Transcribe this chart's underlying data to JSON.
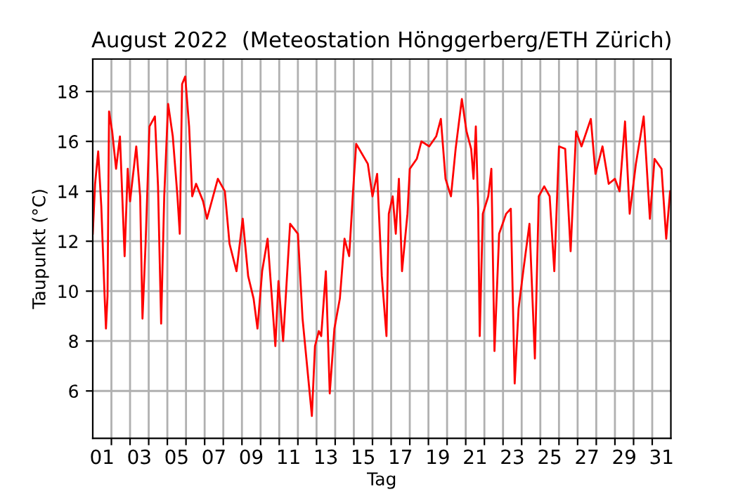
{
  "chart_data": {
    "type": "line",
    "title": "August 2022  (Meteostation Hönggerberg/ETH Zürich)",
    "xlabel": "Tag",
    "ylabel": "Taupunkt (°C)",
    "x": [
      "2022-08-01T00:00",
      "2022-08-01T03:00",
      "2022-08-01T07:00",
      "2022-08-01T11:00",
      "2022-08-01T15:00",
      "2022-08-01T17:00",
      "2022-08-01T19:00",
      "2022-08-01T21:00",
      "2022-08-02T01:00",
      "2022-08-02T06:00",
      "2022-08-02T11:00",
      "2022-08-02T17:00",
      "2022-08-02T21:00",
      "2022-08-03T00:00",
      "2022-08-03T08:00",
      "2022-08-03T13:00",
      "2022-08-03T16:00",
      "2022-08-03T20:00",
      "2022-08-04T01:00",
      "2022-08-04T08:00",
      "2022-08-04T12:00",
      "2022-08-04T16:00",
      "2022-08-04T20:00",
      "2022-08-05T01:00",
      "2022-08-05T07:00",
      "2022-08-05T13:00",
      "2022-08-05T16:00",
      "2022-08-05T19:00",
      "2022-08-05T23:00",
      "2022-08-06T04:00",
      "2022-08-06T08:00",
      "2022-08-06T13:00",
      "2022-08-06T22:00",
      "2022-08-07T03:00",
      "2022-08-07T17:00",
      "2022-08-08T02:00",
      "2022-08-08T08:00",
      "2022-08-08T17:00",
      "2022-08-09T01:00",
      "2022-08-09T08:00",
      "2022-08-09T15:00",
      "2022-08-09T20:00",
      "2022-08-10T02:00",
      "2022-08-10T09:00",
      "2022-08-10T19:00",
      "2022-08-10T23:00",
      "2022-08-11T05:00",
      "2022-08-11T14:00",
      "2022-08-12T00:00",
      "2022-08-12T06:00",
      "2022-08-12T18:00",
      "2022-08-12T22:00",
      "2022-08-13T03:00",
      "2022-08-13T06:00",
      "2022-08-13T12:00",
      "2022-08-13T17:00",
      "2022-08-13T23:00",
      "2022-08-14T06:00",
      "2022-08-14T12:00",
      "2022-08-14T18:00",
      "2022-08-14T23:00",
      "2022-08-15T03:00",
      "2022-08-15T18:00",
      "2022-08-16T00:00",
      "2022-08-16T06:00",
      "2022-08-16T12:00",
      "2022-08-16T18:00",
      "2022-08-16T21:00",
      "2022-08-17T02:00",
      "2022-08-17T06:00",
      "2022-08-17T10:00",
      "2022-08-17T14:00",
      "2022-08-17T21:00",
      "2022-08-18T00:00",
      "2022-08-18T09:00",
      "2022-08-18T15:00",
      "2022-08-19T01:00",
      "2022-08-19T10:00",
      "2022-08-19T16:00",
      "2022-08-19T22:00",
      "2022-08-20T05:00",
      "2022-08-20T11:00",
      "2022-08-20T19:00",
      "2022-08-21T01:00",
      "2022-08-21T07:00",
      "2022-08-21T10:00",
      "2022-08-21T13:00",
      "2022-08-21T16:00",
      "2022-08-21T18:00",
      "2022-08-21T22:00",
      "2022-08-22T05:00",
      "2022-08-22T09:00",
      "2022-08-22T13:00",
      "2022-08-22T19:00",
      "2022-08-23T04:00",
      "2022-08-23T10:00",
      "2022-08-23T15:00",
      "2022-08-23T20:00",
      "2022-08-24T02:00",
      "2022-08-24T10:00",
      "2022-08-24T17:00",
      "2022-08-24T22:00",
      "2022-08-25T05:00",
      "2022-08-25T12:00",
      "2022-08-25T18:00",
      "2022-08-26T00:00",
      "2022-08-26T08:00",
      "2022-08-26T15:00",
      "2022-08-26T22:00",
      "2022-08-27T05:00",
      "2022-08-27T17:00",
      "2022-08-27T23:00",
      "2022-08-28T08:00",
      "2022-08-28T16:00",
      "2022-08-29T00:00",
      "2022-08-29T06:00",
      "2022-08-29T13:00",
      "2022-08-29T19:00",
      "2022-08-30T03:00",
      "2022-08-30T13:00",
      "2022-08-30T21:00",
      "2022-08-31T03:00",
      "2022-08-31T12:00",
      "2022-08-31T18:00",
      "2022-08-31T23:00"
    ],
    "series": [
      {
        "color": "#ff0000",
        "values": [
          12.3,
          14.3,
          15.6,
          13.4,
          10.0,
          8.5,
          9.8,
          17.2,
          16.4,
          14.9,
          16.2,
          11.4,
          14.9,
          13.6,
          15.8,
          13.8,
          8.9,
          11.9,
          16.6,
          17.0,
          14.2,
          8.7,
          13.8,
          17.5,
          16.2,
          13.8,
          12.3,
          18.3,
          18.6,
          16.6,
          13.8,
          14.3,
          13.6,
          12.9,
          14.5,
          14.0,
          11.9,
          10.8,
          12.9,
          10.6,
          9.7,
          8.5,
          10.8,
          12.1,
          7.8,
          10.4,
          8.0,
          12.7,
          12.3,
          8.9,
          5.0,
          7.8,
          8.4,
          8.2,
          10.8,
          5.9,
          8.5,
          9.7,
          12.1,
          11.4,
          14.0,
          15.9,
          15.1,
          13.8,
          14.7,
          10.6,
          8.2,
          13.1,
          13.8,
          12.3,
          14.5,
          10.8,
          13.1,
          14.9,
          15.3,
          16.0,
          15.8,
          16.2,
          16.9,
          14.5,
          13.8,
          15.7,
          17.7,
          16.4,
          15.7,
          14.5,
          16.6,
          13.3,
          8.2,
          13.1,
          13.8,
          14.9,
          7.6,
          12.3,
          13.1,
          13.3,
          6.3,
          9.3,
          10.8,
          12.7,
          7.3,
          13.8,
          14.2,
          13.8,
          10.8,
          15.8,
          15.7,
          11.6,
          16.4,
          15.8,
          16.9,
          14.7,
          15.8,
          14.3,
          14.5,
          14.0,
          16.8,
          13.1,
          15.1,
          17.0,
          12.9,
          15.3,
          14.9,
          12.1,
          14.0
        ]
      }
    ],
    "xlim": [
      "2022-08-01T00:00",
      "2022-09-01T00:00"
    ],
    "xticks": [
      {
        "value": "2022-08-02",
        "label": null
      },
      {
        "value": "2022-08-03",
        "label": null
      },
      {
        "value": "2022-08-04",
        "label": null
      },
      {
        "value": "2022-08-05",
        "label": null
      },
      {
        "value": "2022-08-06",
        "label": null
      },
      {
        "value": "2022-08-07",
        "label": null
      },
      {
        "value": "2022-08-08",
        "label": null
      },
      {
        "value": "2022-08-09",
        "label": null
      },
      {
        "value": "2022-08-10",
        "label": null
      },
      {
        "value": "2022-08-11",
        "label": null
      },
      {
        "value": "2022-08-12",
        "label": null
      },
      {
        "value": "2022-08-13",
        "label": null
      },
      {
        "value": "2022-08-14",
        "label": null
      },
      {
        "value": "2022-08-15",
        "label": null
      },
      {
        "value": "2022-08-16",
        "label": null
      },
      {
        "value": "2022-08-17",
        "label": null
      },
      {
        "value": "2022-08-18",
        "label": null
      },
      {
        "value": "2022-08-19",
        "label": null
      },
      {
        "value": "2022-08-20",
        "label": null
      },
      {
        "value": "2022-08-21",
        "label": null
      },
      {
        "value": "2022-08-22",
        "label": null
      },
      {
        "value": "2022-08-23",
        "label": null
      },
      {
        "value": "2022-08-24",
        "label": null
      },
      {
        "value": "2022-08-25",
        "label": null
      },
      {
        "value": "2022-08-26",
        "label": null
      },
      {
        "value": "2022-08-27",
        "label": null
      },
      {
        "value": "2022-08-28",
        "label": null
      },
      {
        "value": "2022-08-29",
        "label": null
      },
      {
        "value": "2022-08-30",
        "label": null
      },
      {
        "value": "2022-08-31",
        "label": null
      },
      {
        "value": "2022-08-01T12:00",
        "label": "01"
      },
      {
        "value": "2022-08-03T12:00",
        "label": "03"
      },
      {
        "value": "2022-08-05T12:00",
        "label": "05"
      },
      {
        "value": "2022-08-07T12:00",
        "label": "07"
      },
      {
        "value": "2022-08-09T12:00",
        "label": "09"
      },
      {
        "value": "2022-08-11T12:00",
        "label": "11"
      },
      {
        "value": "2022-08-13T12:00",
        "label": "13"
      },
      {
        "value": "2022-08-15T12:00",
        "label": "15"
      },
      {
        "value": "2022-08-17T12:00",
        "label": "17"
      },
      {
        "value": "2022-08-19T12:00",
        "label": "19"
      },
      {
        "value": "2022-08-21T12:00",
        "label": "21"
      },
      {
        "value": "2022-08-23T12:00",
        "label": "23"
      },
      {
        "value": "2022-08-25T12:00",
        "label": "25"
      },
      {
        "value": "2022-08-27T12:00",
        "label": "27"
      },
      {
        "value": "2022-08-29T12:00",
        "label": "29"
      },
      {
        "value": "2022-08-31T12:00",
        "label": "31"
      }
    ],
    "ylim": [
      4.1,
      19.3
    ],
    "yticks": [
      6,
      8,
      10,
      12,
      14,
      16,
      18
    ],
    "grid": true,
    "legend": false,
    "marker": "none",
    "line_style": "solid"
  }
}
